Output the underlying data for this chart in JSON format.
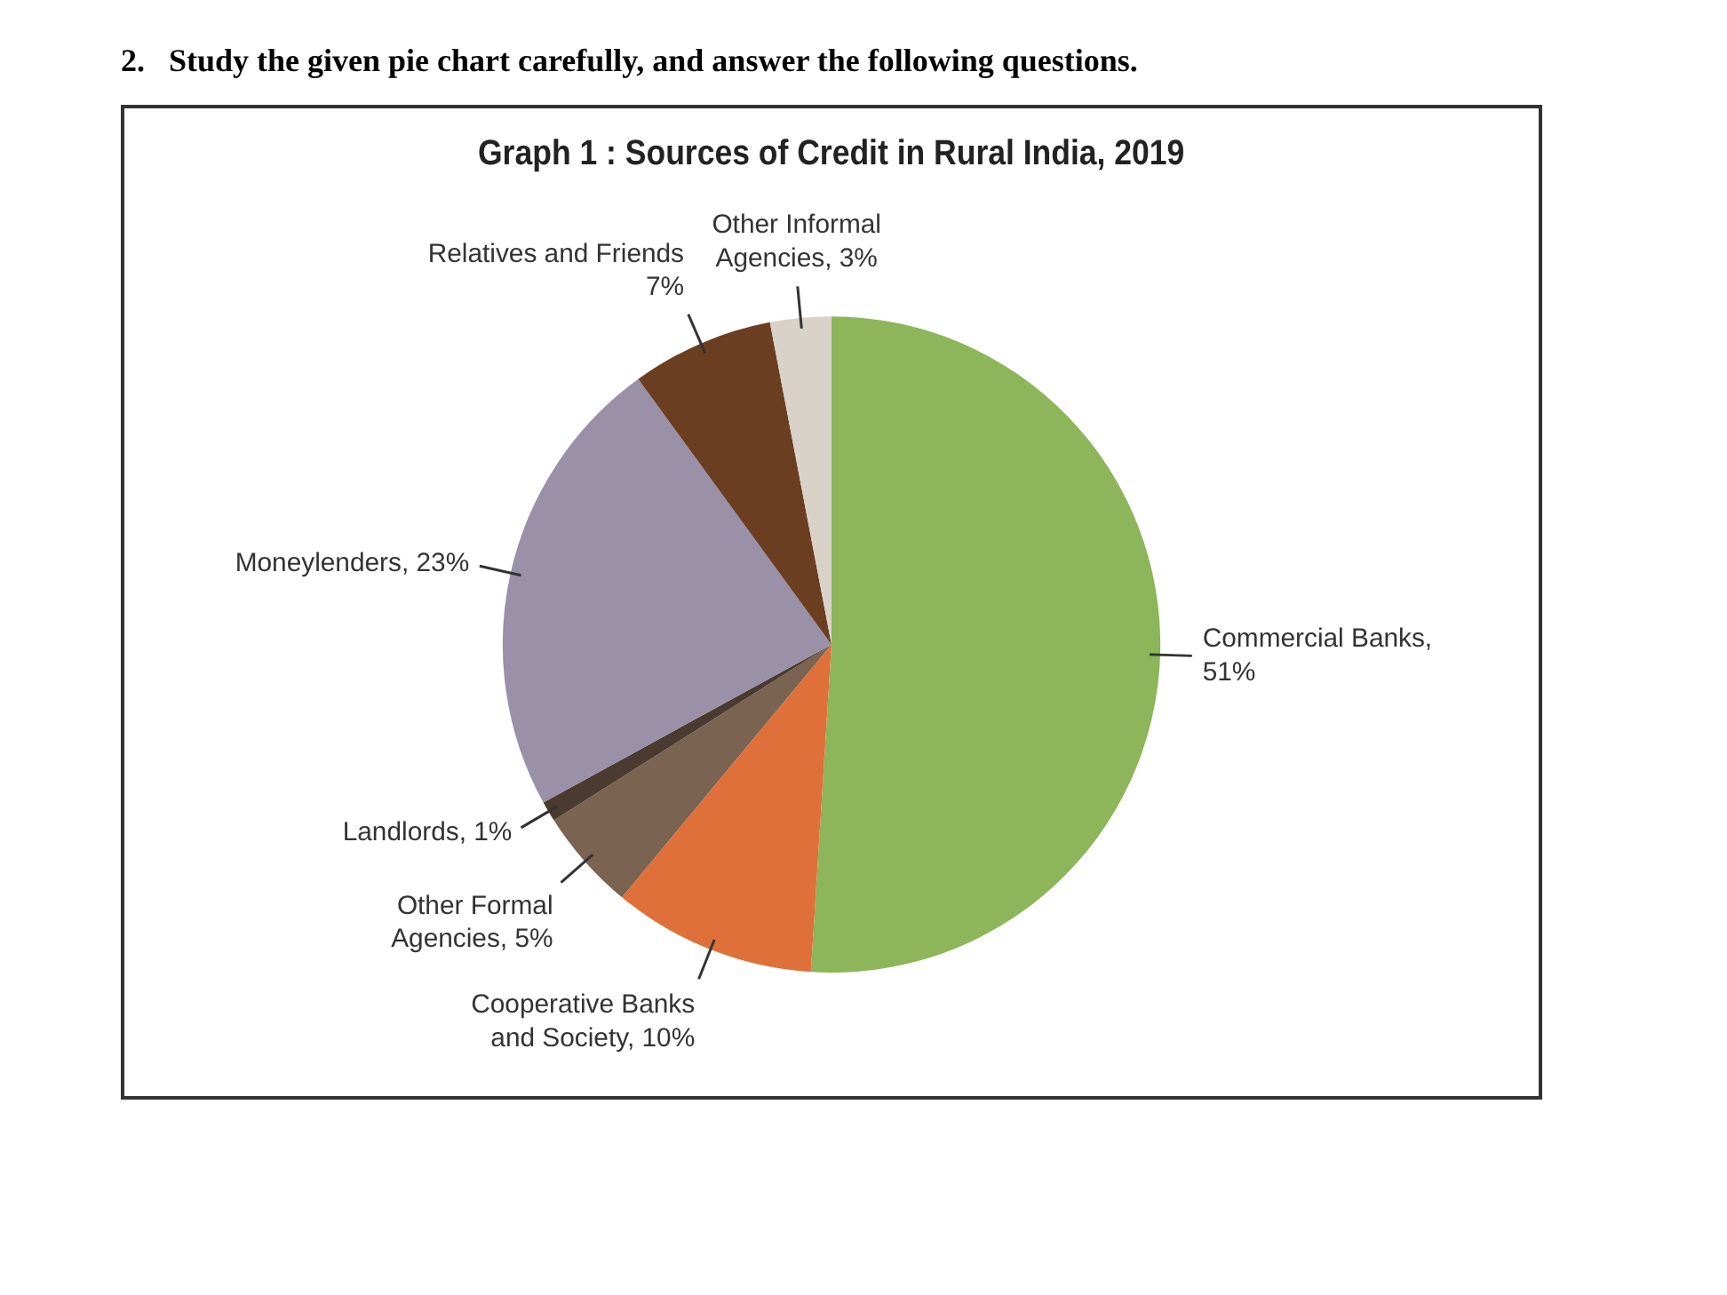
{
  "chart_data": {
    "type": "pie",
    "title": "Graph 1 : Sources of Credit in Rural India, 2019",
    "annotations": [
      "2.   Study the given pie chart carefully, and answer the following questions."
    ],
    "categories": [
      "Commercial Banks",
      "Cooperative Banks and Society",
      "Other Formal Agencies",
      "Landlords",
      "Moneylenders",
      "Relatives and Friends",
      "Other Informal Agencies"
    ],
    "values": [
      51,
      10,
      5,
      1,
      23,
      7,
      3
    ],
    "value_labels": [
      ", 51%",
      ", 10%",
      ", 5%",
      ", 1%",
      ", 23%",
      " 7%",
      ", 3%"
    ],
    "colors": [
      "#8db55a",
      "#e0703a",
      "#7a6350",
      "#4a3a30",
      "#9a90a8",
      "#6b3e22",
      "#d8d2c8"
    ],
    "legend": false
  }
}
